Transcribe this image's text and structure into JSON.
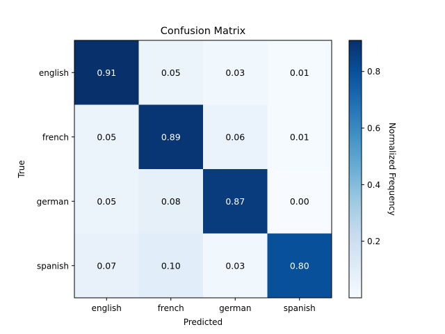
{
  "chart_data": {
    "type": "heatmap",
    "title": "Confusion Matrix",
    "xlabel": "Predicted",
    "ylabel": "True",
    "x_categories": [
      "english",
      "french",
      "german",
      "spanish"
    ],
    "y_categories": [
      "english",
      "french",
      "german",
      "spanish"
    ],
    "values": [
      [
        0.91,
        0.05,
        0.03,
        0.01
      ],
      [
        0.05,
        0.89,
        0.06,
        0.01
      ],
      [
        0.05,
        0.08,
        0.87,
        0.0
      ],
      [
        0.07,
        0.1,
        0.03,
        0.8
      ]
    ],
    "colormap": "Blues",
    "colorbar": {
      "label": "Normalized Frequency",
      "ticks": [
        0.2,
        0.4,
        0.6,
        0.8
      ],
      "range": [
        0.0,
        0.91
      ]
    }
  }
}
